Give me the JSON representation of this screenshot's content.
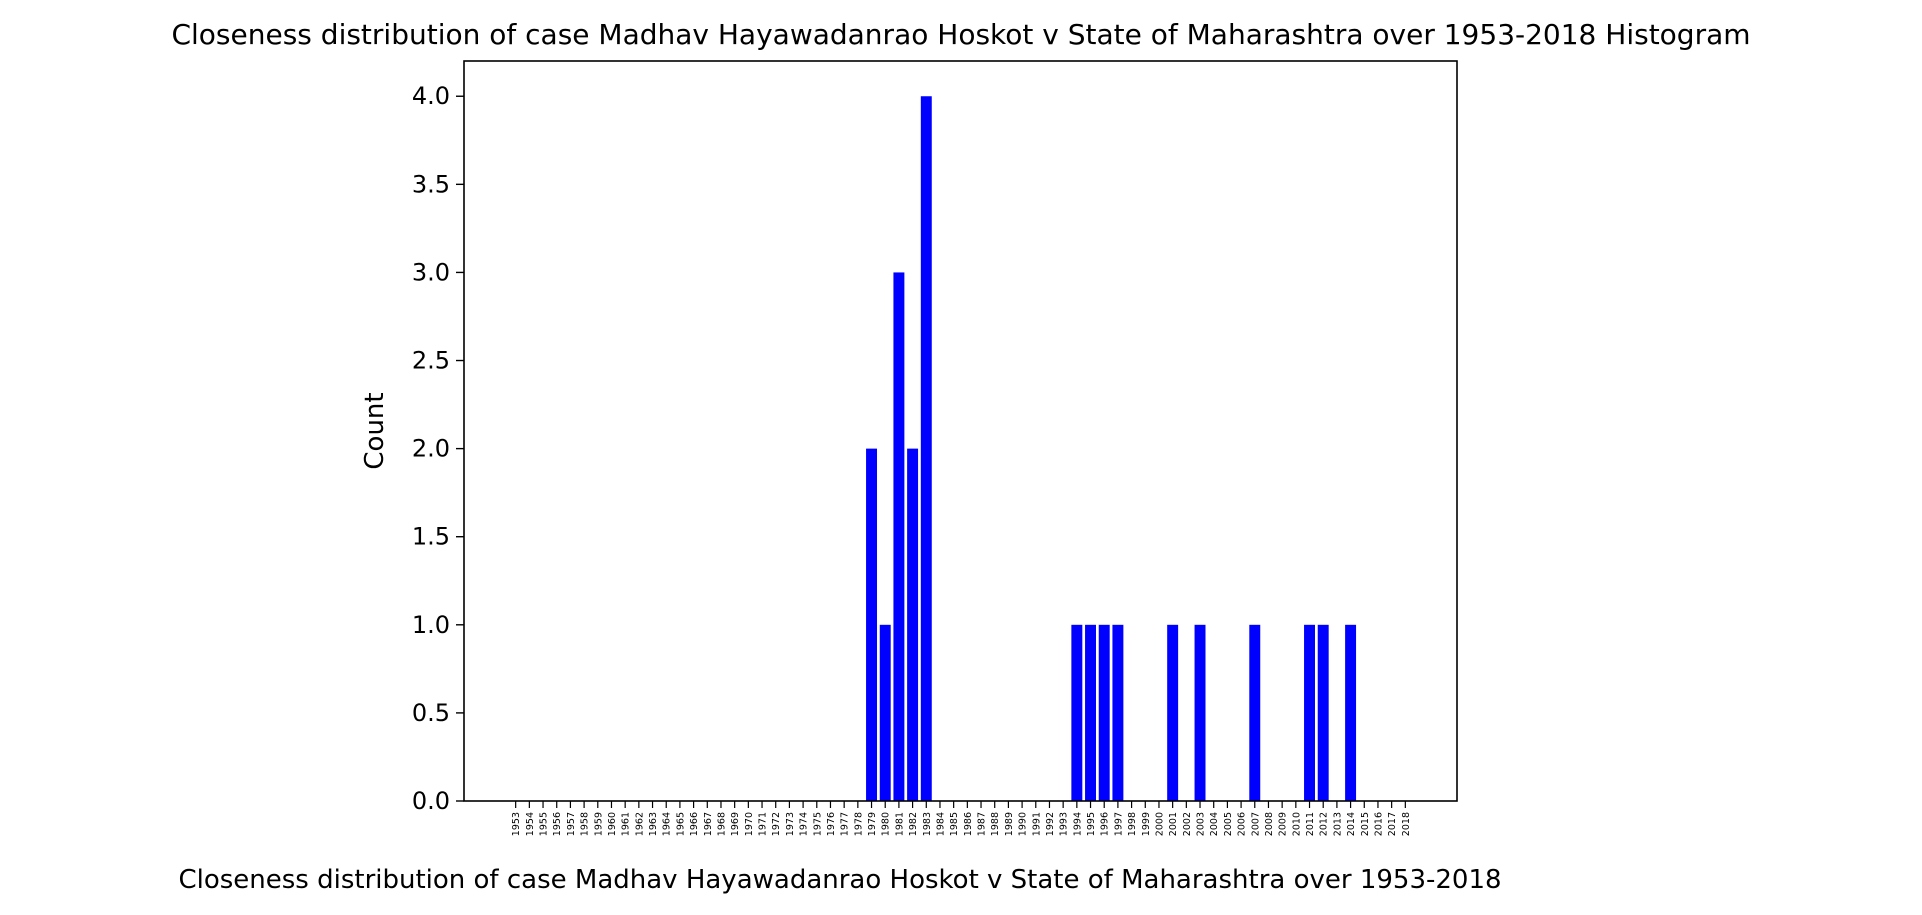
{
  "chart_data": {
    "type": "bar",
    "title": "Closeness distribution of case Madhav Hayawadanrao Hoskot v State of Maharashtra over 1953-2018 Histogram",
    "xlabel": "Closeness distribution of case Madhav Hayawadanrao Hoskot v State of Maharashtra over 1953-2018",
    "ylabel": "Count",
    "ylim": [
      0,
      4.2
    ],
    "yticks": [
      "0.0",
      "0.5",
      "1.0",
      "1.5",
      "2.0",
      "2.5",
      "3.0",
      "3.5",
      "4.0"
    ],
    "grid": false,
    "bar_color": "#0000ff",
    "categories": [
      "1953",
      "1954",
      "1955",
      "1956",
      "1957",
      "1958",
      "1959",
      "1960",
      "1961",
      "1962",
      "1963",
      "1964",
      "1965",
      "1966",
      "1967",
      "1968",
      "1969",
      "1970",
      "1971",
      "1972",
      "1973",
      "1974",
      "1975",
      "1976",
      "1977",
      "1978",
      "1979",
      "1980",
      "1981",
      "1982",
      "1983",
      "1984",
      "1985",
      "1986",
      "1987",
      "1988",
      "1989",
      "1990",
      "1991",
      "1992",
      "1993",
      "1994",
      "1995",
      "1996",
      "1997",
      "1998",
      "1999",
      "2000",
      "2001",
      "2002",
      "2003",
      "2004",
      "2005",
      "2006",
      "2007",
      "2008",
      "2009",
      "2010",
      "2011",
      "2012",
      "2013",
      "2014",
      "2015",
      "2016",
      "2017",
      "2018"
    ],
    "values": [
      0,
      0,
      0,
      0,
      0,
      0,
      0,
      0,
      0,
      0,
      0,
      0,
      0,
      0,
      0,
      0,
      0,
      0,
      0,
      0,
      0,
      0,
      0,
      0,
      0,
      0,
      2,
      1,
      3,
      2,
      4,
      0,
      0,
      0,
      0,
      0,
      0,
      0,
      0,
      0,
      0,
      1,
      1,
      1,
      1,
      0,
      0,
      0,
      1,
      0,
      1,
      0,
      0,
      0,
      1,
      0,
      0,
      0,
      1,
      1,
      0,
      1,
      0,
      0,
      0,
      0
    ]
  }
}
